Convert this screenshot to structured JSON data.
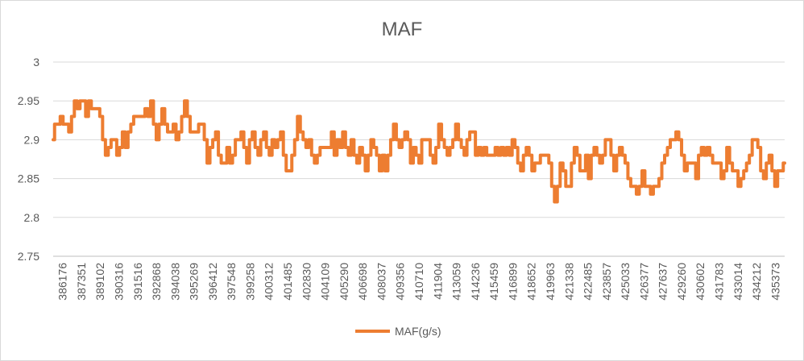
{
  "chart_data": {
    "type": "line",
    "title": "MAF",
    "xlabel": "",
    "ylabel": "",
    "ylim": [
      2.75,
      3.0
    ],
    "y_ticks": [
      "2.75",
      "2.8",
      "2.85",
      "2.9",
      "2.95",
      "3"
    ],
    "grid": true,
    "legend_position": "bottom",
    "x_tick_labels": [
      "386176",
      "387351",
      "389102",
      "390316",
      "391516",
      "392868",
      "394038",
      "395269",
      "396412",
      "397548",
      "399258",
      "400312",
      "401485",
      "402830",
      "404109",
      "405290",
      "406698",
      "408037",
      "409356",
      "410710",
      "411904",
      "413059",
      "414236",
      "415459",
      "416899",
      "418652",
      "419963",
      "421338",
      "422485",
      "423857",
      "425033",
      "426377",
      "427637",
      "429260",
      "430602",
      "431783",
      "433014",
      "434212",
      "435373"
    ],
    "series": [
      {
        "name": "MAF(g/s)",
        "color": "#ED7D31",
        "values": [
          2.9,
          2.92,
          2.92,
          2.93,
          2.92,
          2.92,
          2.91,
          2.93,
          2.95,
          2.94,
          2.95,
          2.95,
          2.93,
          2.95,
          2.94,
          2.94,
          2.94,
          2.93,
          2.9,
          2.88,
          2.89,
          2.9,
          2.9,
          2.88,
          2.89,
          2.91,
          2.89,
          2.91,
          2.92,
          2.93,
          2.93,
          2.93,
          2.93,
          2.94,
          2.93,
          2.95,
          2.92,
          2.9,
          2.92,
          2.94,
          2.92,
          2.91,
          2.91,
          2.92,
          2.9,
          2.91,
          2.93,
          2.95,
          2.93,
          2.91,
          2.91,
          2.91,
          2.92,
          2.92,
          2.9,
          2.87,
          2.89,
          2.9,
          2.91,
          2.88,
          2.87,
          2.87,
          2.89,
          2.87,
          2.88,
          2.9,
          2.9,
          2.91,
          2.89,
          2.87,
          2.9,
          2.91,
          2.89,
          2.88,
          2.9,
          2.91,
          2.89,
          2.88,
          2.9,
          2.89,
          2.9,
          2.91,
          2.88,
          2.86,
          2.86,
          2.88,
          2.9,
          2.93,
          2.91,
          2.9,
          2.89,
          2.9,
          2.88,
          2.87,
          2.88,
          2.89,
          2.89,
          2.89,
          2.89,
          2.91,
          2.88,
          2.9,
          2.89,
          2.91,
          2.89,
          2.88,
          2.9,
          2.88,
          2.87,
          2.89,
          2.88,
          2.86,
          2.88,
          2.9,
          2.89,
          2.88,
          2.86,
          2.88,
          2.86,
          2.88,
          2.9,
          2.92,
          2.9,
          2.89,
          2.9,
          2.91,
          2.9,
          2.87,
          2.89,
          2.88,
          2.87,
          2.9,
          2.9,
          2.9,
          2.88,
          2.87,
          2.89,
          2.92,
          2.9,
          2.89,
          2.88,
          2.89,
          2.9,
          2.92,
          2.9,
          2.89,
          2.88,
          2.9,
          2.91,
          2.91,
          2.88,
          2.89,
          2.88,
          2.89,
          2.88,
          2.88,
          2.88,
          2.89,
          2.88,
          2.89,
          2.88,
          2.89,
          2.88,
          2.9,
          2.89,
          2.87,
          2.86,
          2.88,
          2.89,
          2.88,
          2.86,
          2.87,
          2.87,
          2.88,
          2.88,
          2.88,
          2.87,
          2.84,
          2.82,
          2.84,
          2.87,
          2.86,
          2.84,
          2.84,
          2.87,
          2.89,
          2.88,
          2.86,
          2.86,
          2.88,
          2.85,
          2.88,
          2.89,
          2.88,
          2.87,
          2.88,
          2.9,
          2.9,
          2.88,
          2.86,
          2.88,
          2.89,
          2.88,
          2.87,
          2.85,
          2.84,
          2.84,
          2.83,
          2.84,
          2.86,
          2.84,
          2.84,
          2.83,
          2.84,
          2.84,
          2.85,
          2.87,
          2.88,
          2.89,
          2.9,
          2.9,
          2.91,
          2.9,
          2.88,
          2.86,
          2.87,
          2.87,
          2.87,
          2.85,
          2.88,
          2.89,
          2.88,
          2.89,
          2.88,
          2.87,
          2.87,
          2.87,
          2.85,
          2.86,
          2.89,
          2.87,
          2.86,
          2.86,
          2.84,
          2.85,
          2.86,
          2.87,
          2.88,
          2.9,
          2.9,
          2.89,
          2.86,
          2.85,
          2.87,
          2.88,
          2.86,
          2.84,
          2.86,
          2.86,
          2.87
        ]
      }
    ]
  }
}
